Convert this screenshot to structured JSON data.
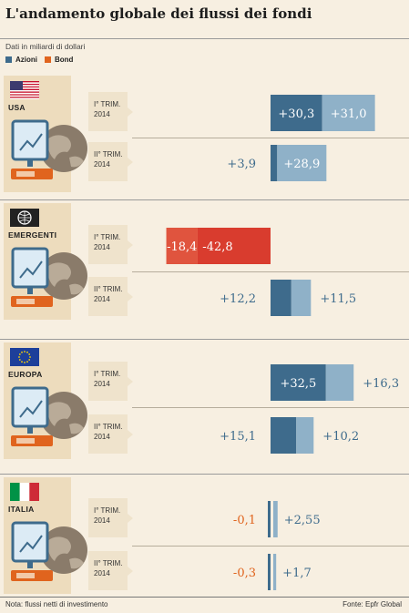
{
  "header": {
    "title": "L'andamento globale dei flussi dei fondi",
    "subtitle": "Dati in miliardi di dollari",
    "legend": [
      {
        "name": "Azioni",
        "color": "#3e6b8c"
      },
      {
        "name": "Bond",
        "color": "#8fb1c8"
      }
    ]
  },
  "footer": {
    "note": "Nota: flussi netti di investimento",
    "source": "Fonte: Epfr Global"
  },
  "colors": {
    "azioni": "#3e6b8c",
    "bond": "#8fb1c8",
    "negative_bar": "#d93c2e",
    "negative_dark": "#e0543e",
    "positive_text": "#3e6b8c",
    "negative_text": "#e0641e",
    "background": "#f7efe1"
  },
  "regions": [
    {
      "name": "USA",
      "icon": "us-flag-icon"
    },
    {
      "name": "EMERGENTI",
      "icon": "globe-icon"
    },
    {
      "name": "EUROPA",
      "icon": "eu-flag-icon"
    },
    {
      "name": "ITALIA",
      "icon": "italy-flag-icon"
    }
  ],
  "chart_data": {
    "type": "bar",
    "orientation": "horizontal",
    "stacked": true,
    "title": "L'andamento globale dei flussi dei fondi",
    "unit": "Dati in miliardi di dollari",
    "series": [
      {
        "name": "Azioni",
        "values": [
          30.3,
          3.9,
          -18.4,
          12.2,
          32.5,
          15.1,
          -0.1,
          -0.3
        ]
      },
      {
        "name": "Bond",
        "values": [
          31.0,
          28.9,
          -42.8,
          11.5,
          16.3,
          10.2,
          2.55,
          1.7
        ]
      }
    ],
    "labels_azioni": [
      "+30,3",
      "+3,9",
      "-18,4",
      "+12,2",
      "+32,5",
      "+15,1",
      "-0,1",
      "-0,3"
    ],
    "labels_bond": [
      "+31,0",
      "+28,9",
      "-42,8",
      "+11,5",
      "+16,3",
      "+10,2",
      "+2,55",
      "+1,7"
    ],
    "categories": [
      {
        "region": "USA",
        "period": "I° TRIM. 2014"
      },
      {
        "region": "USA",
        "period": "II° TRIM. 2014"
      },
      {
        "region": "EMERGENTI",
        "period": "I° TRIM. 2014"
      },
      {
        "region": "EMERGENTI",
        "period": "II° TRIM. 2014"
      },
      {
        "region": "EUROPA",
        "period": "I° TRIM. 2014"
      },
      {
        "region": "EUROPA",
        "period": "II° TRIM. 2014"
      },
      {
        "region": "ITALIA",
        "period": "I° TRIM. 2014"
      },
      {
        "region": "ITALIA",
        "period": "II° TRIM. 2014"
      }
    ],
    "period_lines": {
      "I° TRIM. 2014": [
        "I° TRIM.",
        "2014"
      ],
      "II° TRIM. 2014": [
        "II° TRIM.",
        "2014"
      ]
    }
  }
}
